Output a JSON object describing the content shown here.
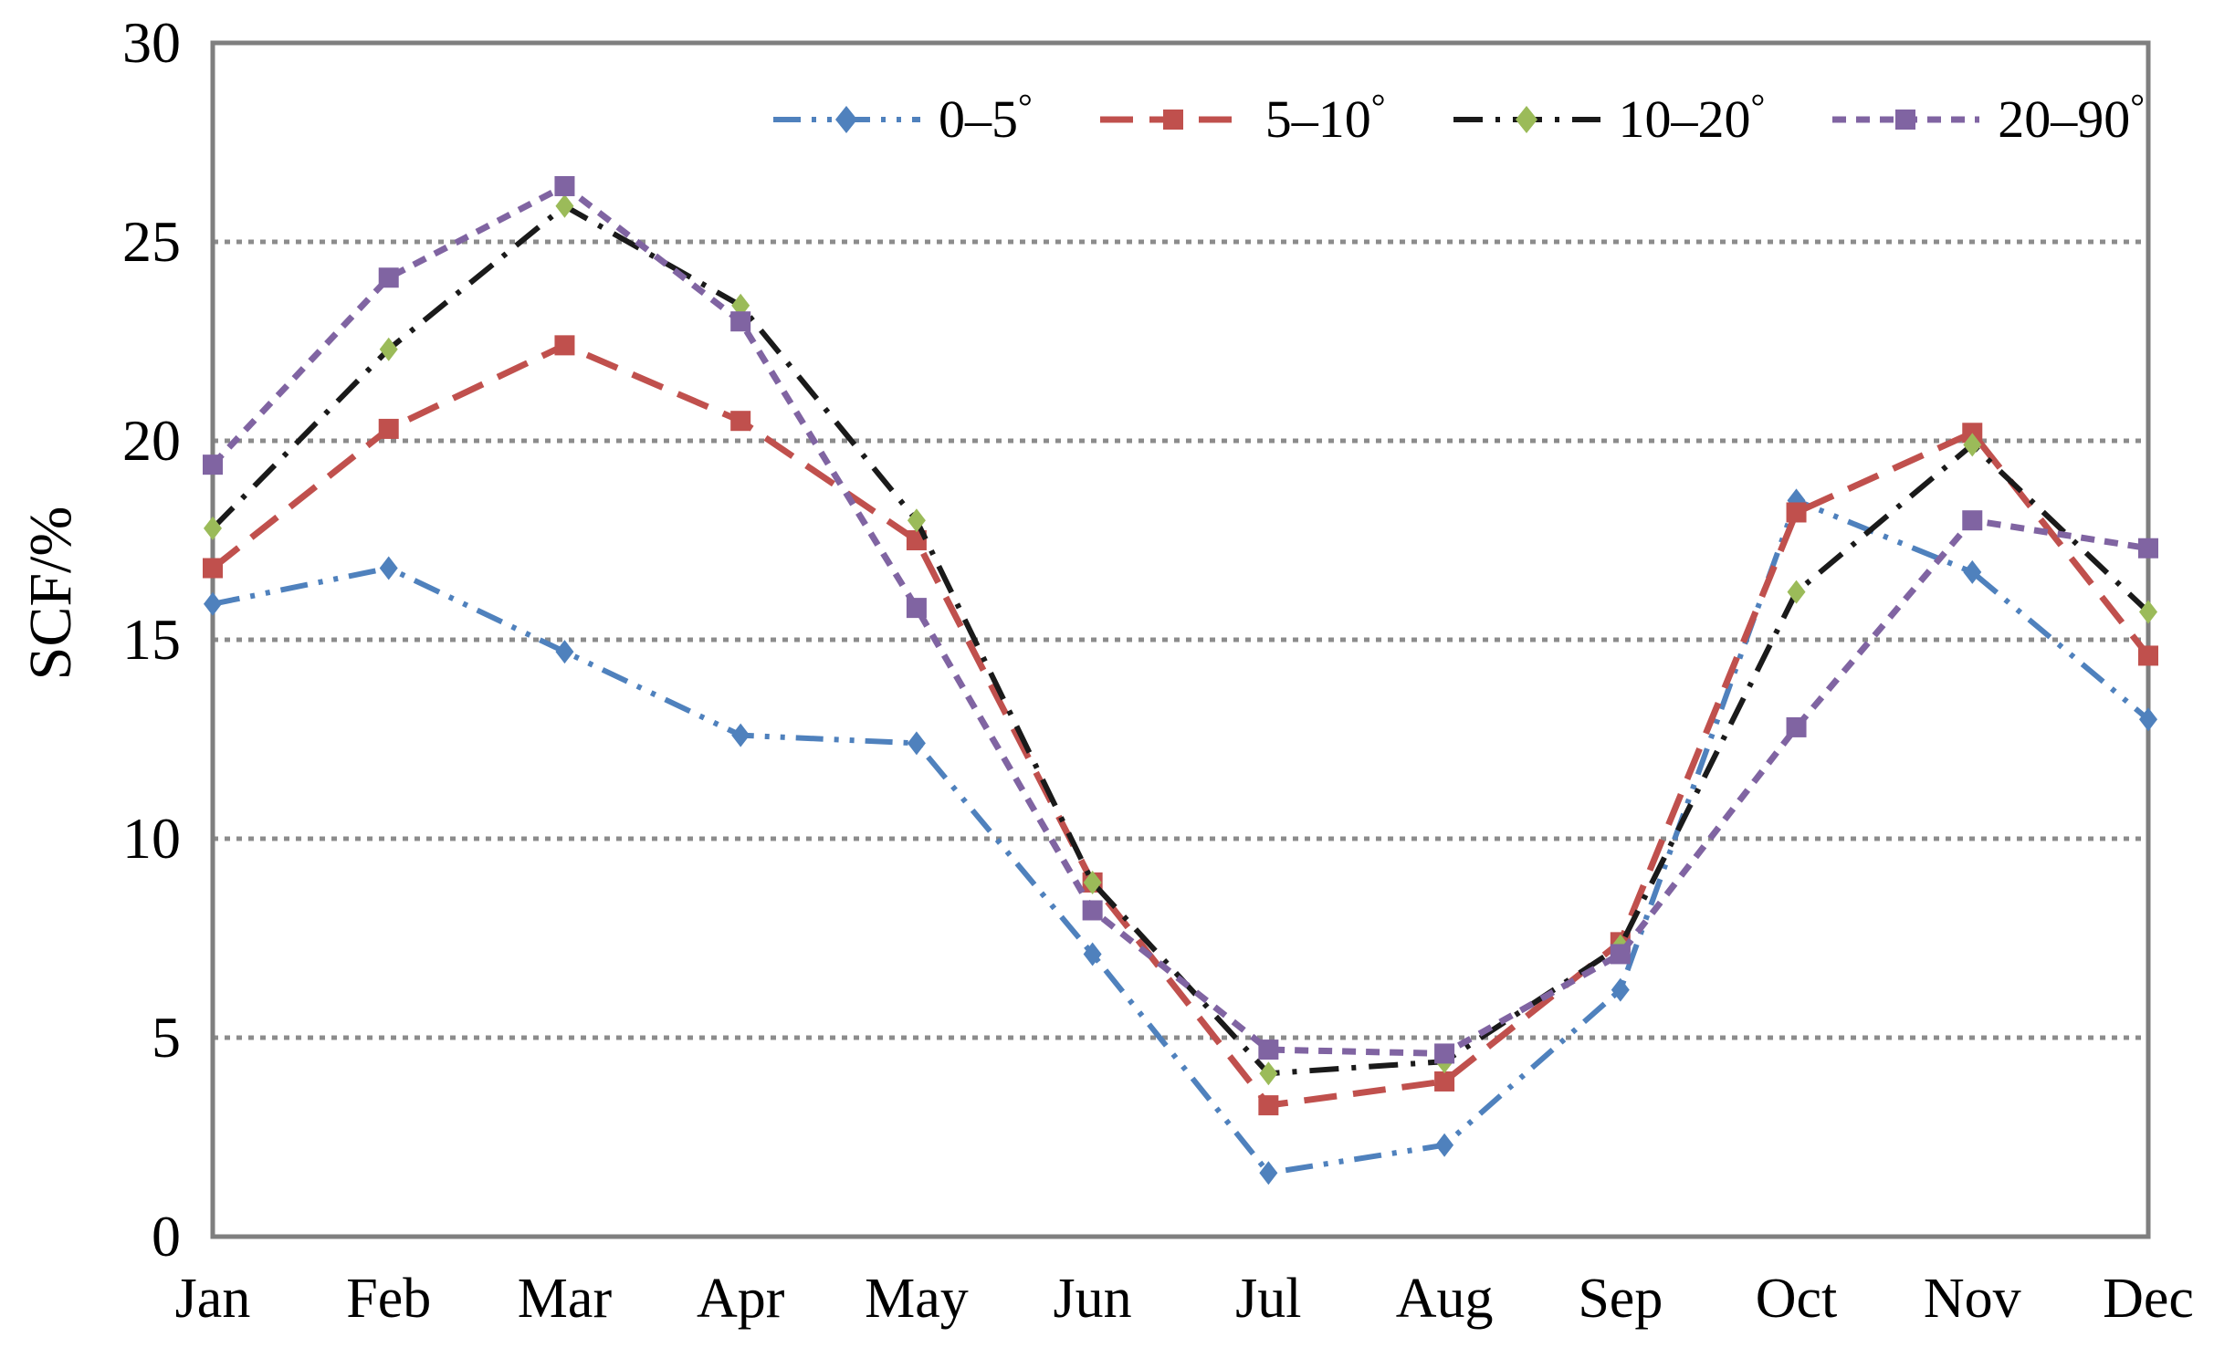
{
  "chart_data": {
    "type": "line",
    "title": "",
    "xlabel": "",
    "ylabel": "SCF/%",
    "ylim": [
      0,
      30
    ],
    "yticks": [
      0,
      5,
      10,
      15,
      20,
      25,
      30
    ],
    "grid": "horizontal dotted gridlines every 5 units",
    "legend_position": "top-center",
    "categories": [
      "Jan",
      "Feb",
      "Mar",
      "Apr",
      "May",
      "Jun",
      "Jul",
      "Aug",
      "Sep",
      "Oct",
      "Nov",
      "Dec"
    ],
    "series": [
      {
        "name": "0–5°",
        "line_color": "#4F81BD",
        "marker": "diamond",
        "marker_color": "#4F81BD",
        "line_style": "dash-dot-dot",
        "values": [
          15.9,
          16.8,
          14.7,
          12.6,
          12.4,
          7.1,
          1.6,
          2.3,
          6.2,
          18.5,
          16.7,
          13.0
        ]
      },
      {
        "name": "5–10°",
        "line_color": "#C0504D",
        "marker": "square",
        "marker_color": "#C0504D",
        "line_style": "long-dash",
        "values": [
          16.8,
          20.3,
          22.4,
          20.5,
          17.5,
          8.9,
          3.3,
          3.9,
          7.4,
          18.2,
          20.2,
          14.6
        ]
      },
      {
        "name": "10–20°",
        "line_color": "#1a1a1a",
        "marker": "diamond",
        "marker_color": "#9BBB59",
        "line_style": "dash-dot",
        "values": [
          17.8,
          22.3,
          25.9,
          23.4,
          18.0,
          8.9,
          4.1,
          4.4,
          7.3,
          16.2,
          19.9,
          15.7
        ]
      },
      {
        "name": "20–90°",
        "line_color": "#8064A2",
        "marker": "square",
        "marker_color": "#8064A2",
        "line_style": "square-dot",
        "values": [
          19.4,
          24.1,
          26.4,
          23.0,
          15.8,
          8.2,
          4.7,
          4.6,
          7.1,
          12.8,
          18.0,
          17.3
        ]
      }
    ]
  },
  "colors": {
    "plot_border": "#7f7f7f",
    "gridline": "#8c8c8c",
    "background": "#ffffff",
    "text": "#000000"
  }
}
